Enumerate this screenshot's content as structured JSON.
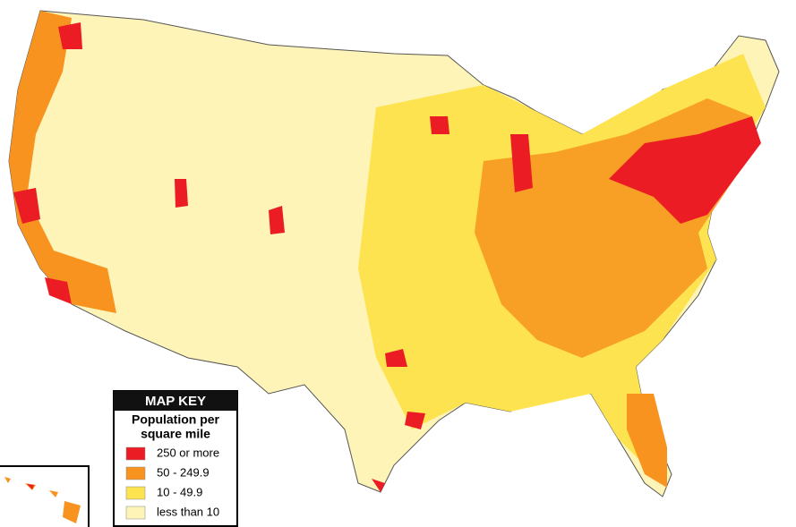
{
  "map_key": {
    "title": "MAP KEY",
    "subtitle_lines": [
      "Population per",
      "square mile"
    ],
    "items": [
      {
        "label": "250 or more",
        "color": "#ec1c24"
      },
      {
        "label": "50 - 249.9",
        "color": "#f7931e"
      },
      {
        "label": "10 - 49.9",
        "color": "#fde34f"
      },
      {
        "label": "less than 10",
        "color": "#fef4b8"
      }
    ]
  }
}
